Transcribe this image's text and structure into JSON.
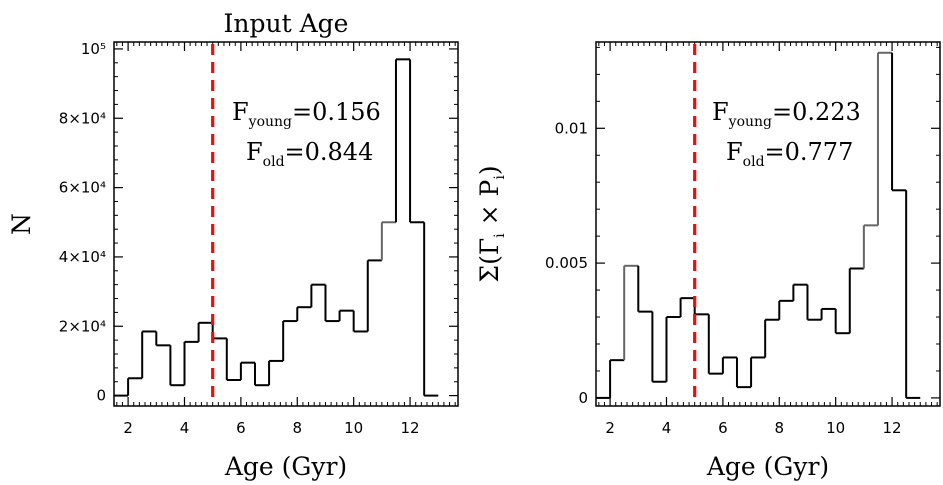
{
  "chart_data": [
    {
      "type": "histogram",
      "title": "Input Age",
      "xlabel": "Age (Gyr)",
      "ylabel": "N",
      "xlim": [
        1.5,
        13.7
      ],
      "ylim": [
        -3000,
        102000
      ],
      "x_ticks": [
        2,
        4,
        6,
        8,
        10,
        12
      ],
      "x_tick_labels": [
        "2",
        "4",
        "6",
        "8",
        "10",
        "12"
      ],
      "y_ticks": [
        0,
        20000,
        40000,
        60000,
        80000,
        100000
      ],
      "y_tick_labels": [
        "0",
        "2×10⁴",
        "4×10⁴",
        "6×10⁴",
        "8×10⁴",
        "10⁵"
      ],
      "bin_edges": [
        2.0,
        2.5,
        3.0,
        3.5,
        4.0,
        4.5,
        5.0,
        5.5,
        6.0,
        6.5,
        7.0,
        7.5,
        8.0,
        8.5,
        9.0,
        9.5,
        10.0,
        10.5,
        11.0,
        11.5,
        12.0,
        12.5,
        13.0
      ],
      "values": [
        5000,
        18500,
        14500,
        3000,
        15500,
        21000,
        16500,
        4500,
        9500,
        3000,
        10000,
        21500,
        25500,
        32000,
        21500,
        24500,
        18500,
        39000,
        50000,
        97000,
        50000,
        0
      ],
      "series": [
        {
          "name": "",
          "color": "#000000",
          "segment_colors": [
            "#000000",
            "#000000",
            "#000000",
            "#000000",
            "#000000",
            "#000000",
            "#000000",
            "#000000",
            "#000000",
            "#000000",
            "#000000",
            "#000000",
            "#000000",
            "#000000",
            "#000000",
            "#000000",
            "#000000",
            "#000000",
            "#666666",
            "#000000",
            "#000000",
            "#000000"
          ]
        }
      ],
      "vline": {
        "x": 5.0,
        "color": "#e8100c",
        "style": "dashed"
      },
      "annotation": {
        "line1": {
          "main": "F",
          "sub": "young",
          "value": "=0.156"
        },
        "line2": {
          "main": "F",
          "sub": "old",
          "value": "=0.844"
        }
      }
    },
    {
      "type": "histogram",
      "title": "",
      "xlabel": "Age (Gyr)",
      "ylabel": "Σ(Γ_i × P_i)",
      "ylabel_parts": {
        "pre": "Σ(Γ",
        "sub1": "i",
        "mid": " × P",
        "sub2": "i",
        "post": ")"
      },
      "xlim": [
        1.5,
        13.7
      ],
      "ylim": [
        -0.0003,
        0.0132
      ],
      "x_ticks": [
        2,
        4,
        6,
        8,
        10,
        12
      ],
      "x_tick_labels": [
        "2",
        "4",
        "6",
        "8",
        "10",
        "12"
      ],
      "y_ticks": [
        0,
        0.005,
        0.01
      ],
      "y_tick_labels": [
        "0",
        "0.005",
        "0.01"
      ],
      "bin_edges": [
        2.0,
        2.5,
        3.0,
        3.5,
        4.0,
        4.5,
        5.0,
        5.5,
        6.0,
        6.5,
        7.0,
        7.5,
        8.0,
        8.5,
        9.0,
        9.5,
        10.0,
        10.5,
        11.0,
        11.5,
        12.0,
        12.5,
        13.0
      ],
      "values": [
        0.0014,
        0.0049,
        0.0032,
        0.0006,
        0.003,
        0.0037,
        0.0031,
        0.0009,
        0.0015,
        0.0004,
        0.0015,
        0.0029,
        0.0036,
        0.0042,
        0.0029,
        0.0033,
        0.0024,
        0.0048,
        0.0064,
        0.0128,
        0.0077,
        0.0
      ],
      "series": [
        {
          "name": "",
          "color": "#000000",
          "segment_colors": [
            "#000000",
            "#666666",
            "#000000",
            "#000000",
            "#000000",
            "#000000",
            "#000000",
            "#000000",
            "#000000",
            "#000000",
            "#000000",
            "#000000",
            "#000000",
            "#000000",
            "#000000",
            "#000000",
            "#000000",
            "#000000",
            "#666666",
            "#666666",
            "#000000",
            "#000000"
          ]
        }
      ],
      "vline": {
        "x": 5.0,
        "color": "#e8100c",
        "style": "dashed"
      },
      "annotation": {
        "line1": {
          "main": "F",
          "sub": "young",
          "value": "=0.223"
        },
        "line2": {
          "main": "F",
          "sub": "old",
          "value": "=0.777"
        }
      }
    }
  ]
}
